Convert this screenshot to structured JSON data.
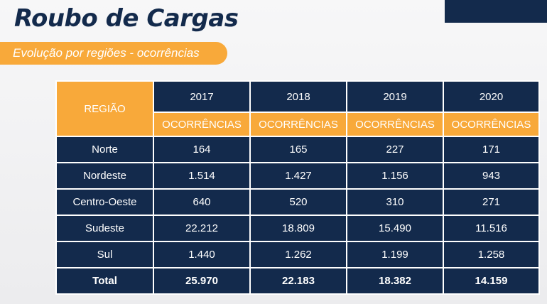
{
  "title": "Roubo de Cargas",
  "subtitle": "Evolução por regiões - ocorrências",
  "table": {
    "region_header": "REGIÃO",
    "years": [
      "2017",
      "2018",
      "2019",
      "2020"
    ],
    "sub_header": "OCORRÊNCIAS",
    "rows": [
      {
        "region": "Norte",
        "values": [
          "164",
          "165",
          "227",
          "171"
        ]
      },
      {
        "region": "Nordeste",
        "values": [
          "1.514",
          "1.427",
          "1.156",
          "943"
        ]
      },
      {
        "region": "Centro-Oeste",
        "values": [
          "640",
          "520",
          "310",
          "271"
        ]
      },
      {
        "region": "Sudeste",
        "values": [
          "22.212",
          "18.809",
          "15.490",
          "11.516"
        ]
      },
      {
        "region": "Sul",
        "values": [
          "1.440",
          "1.262",
          "1.199",
          "1.258"
        ]
      },
      {
        "region": "Total",
        "values": [
          "25.970",
          "22.183",
          "18.382",
          "14.159"
        ]
      }
    ]
  },
  "colors": {
    "navy": "#132a4c",
    "orange": "#f8a93a"
  }
}
